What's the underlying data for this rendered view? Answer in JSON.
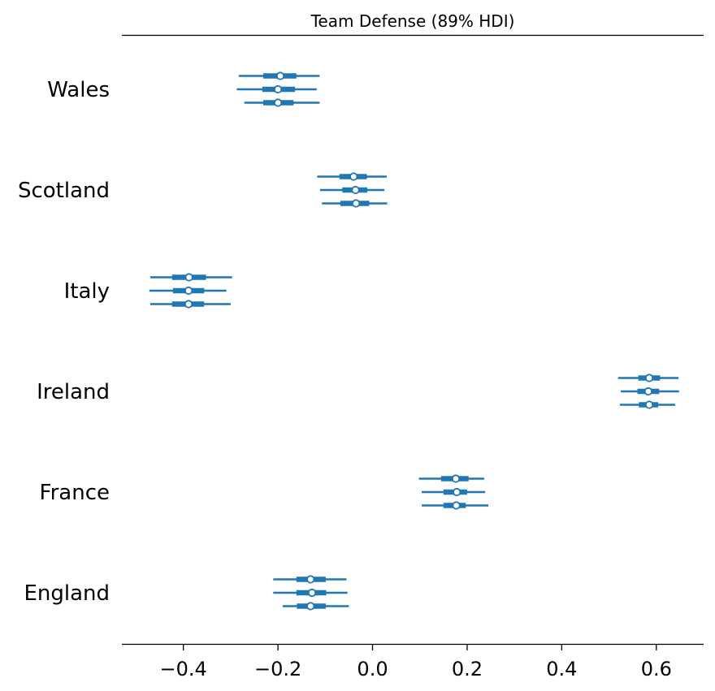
{
  "chart_data": {
    "type": "forest",
    "title": "Team Defense (89% HDI)",
    "xlabel": "",
    "ylabel": "",
    "xlim": [
      -0.53,
      0.7
    ],
    "xticks": [
      -0.4,
      -0.2,
      0.0,
      0.2,
      0.4,
      0.6
    ],
    "xtick_labels": [
      "−0.4",
      "−0.2",
      "0.0",
      "0.2",
      "0.4",
      "0.6"
    ],
    "grid": false,
    "color": "#1f77b4",
    "categories": [
      "Wales",
      "Scotland",
      "Italy",
      "Ireland",
      "France",
      "England"
    ],
    "chains_per_category": 3,
    "teams": [
      {
        "name": "Wales",
        "chains": [
          {
            "mean": -0.195,
            "hdi_low": -0.283,
            "hdi_high": -0.112,
            "iqr_low": -0.231,
            "iqr_high": -0.161
          },
          {
            "mean": -0.2,
            "hdi_low": -0.287,
            "hdi_high": -0.118,
            "iqr_low": -0.233,
            "iqr_high": -0.164
          },
          {
            "mean": -0.2,
            "hdi_low": -0.271,
            "hdi_high": -0.112,
            "iqr_low": -0.231,
            "iqr_high": -0.167
          }
        ]
      },
      {
        "name": "Scotland",
        "chains": [
          {
            "mean": -0.04,
            "hdi_low": -0.117,
            "hdi_high": 0.03,
            "iqr_low": -0.07,
            "iqr_high": -0.012
          },
          {
            "mean": -0.036,
            "hdi_low": -0.111,
            "hdi_high": 0.025,
            "iqr_low": -0.064,
            "iqr_high": -0.011
          },
          {
            "mean": -0.035,
            "hdi_low": -0.107,
            "hdi_high": 0.031,
            "iqr_low": -0.068,
            "iqr_high": -0.007
          }
        ]
      },
      {
        "name": "Italy",
        "chains": [
          {
            "mean": -0.388,
            "hdi_low": -0.47,
            "hdi_high": -0.297,
            "iqr_low": -0.424,
            "iqr_high": -0.352
          },
          {
            "mean": -0.389,
            "hdi_low": -0.472,
            "hdi_high": -0.309,
            "iqr_low": -0.422,
            "iqr_high": -0.356
          },
          {
            "mean": -0.389,
            "hdi_low": -0.47,
            "hdi_high": -0.3,
            "iqr_low": -0.424,
            "iqr_high": -0.356
          }
        ]
      },
      {
        "name": "Ireland",
        "chains": [
          {
            "mean": 0.585,
            "hdi_low": 0.519,
            "hdi_high": 0.647,
            "iqr_low": 0.562,
            "iqr_high": 0.608
          },
          {
            "mean": 0.583,
            "hdi_low": 0.525,
            "hdi_high": 0.648,
            "iqr_low": 0.56,
            "iqr_high": 0.606
          },
          {
            "mean": 0.585,
            "hdi_low": 0.523,
            "hdi_high": 0.64,
            "iqr_low": 0.563,
            "iqr_high": 0.604
          }
        ]
      },
      {
        "name": "France",
        "chains": [
          {
            "mean": 0.176,
            "hdi_low": 0.098,
            "hdi_high": 0.236,
            "iqr_low": 0.145,
            "iqr_high": 0.203
          },
          {
            "mean": 0.178,
            "hdi_low": 0.104,
            "hdi_high": 0.238,
            "iqr_low": 0.15,
            "iqr_high": 0.2
          },
          {
            "mean": 0.177,
            "hdi_low": 0.104,
            "hdi_high": 0.245,
            "iqr_low": 0.15,
            "iqr_high": 0.197
          }
        ]
      },
      {
        "name": "England",
        "chains": [
          {
            "mean": -0.131,
            "hdi_low": -0.21,
            "hdi_high": -0.055,
            "iqr_low": -0.161,
            "iqr_high": -0.099
          },
          {
            "mean": -0.128,
            "hdi_low": -0.21,
            "hdi_high": -0.053,
            "iqr_low": -0.161,
            "iqr_high": -0.098
          },
          {
            "mean": -0.131,
            "hdi_low": -0.19,
            "hdi_high": -0.05,
            "iqr_low": -0.16,
            "iqr_high": -0.099
          }
        ]
      }
    ]
  }
}
